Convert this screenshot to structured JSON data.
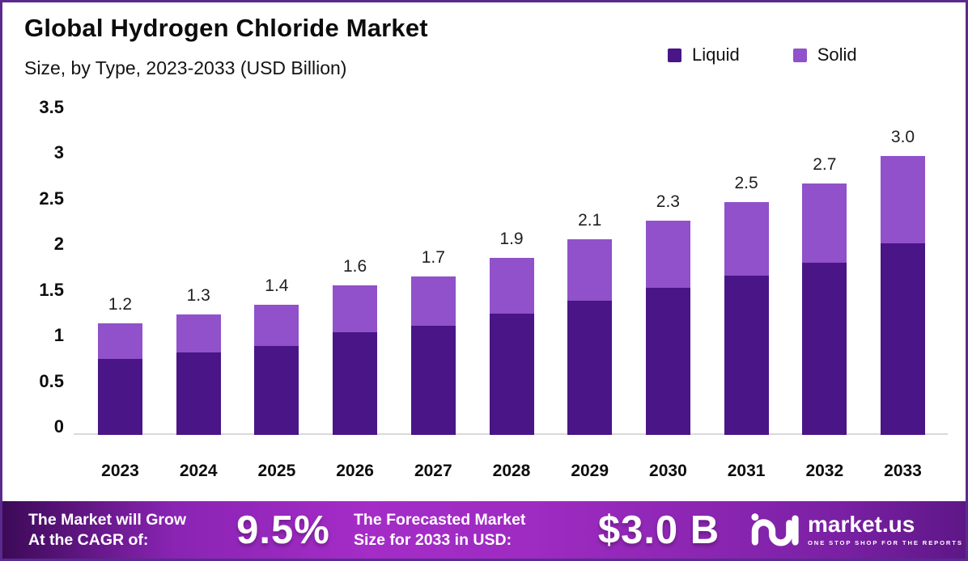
{
  "title": "Global Hydrogen Chloride Market",
  "subtitle": "Size, by Type, 2023-2033 (USD Billion)",
  "legend": [
    {
      "label": "Liquid",
      "color": "#4a1586"
    },
    {
      "label": "Solid",
      "color": "#9051ca"
    }
  ],
  "chart_data": {
    "type": "bar",
    "stacked": true,
    "title": "Global Hydrogen Chloride Market Size, by Type, 2023-2033 (USD Billion)",
    "categories": [
      "2023",
      "2024",
      "2025",
      "2026",
      "2027",
      "2028",
      "2029",
      "2030",
      "2031",
      "2032",
      "2033"
    ],
    "series": [
      {
        "name": "Liquid",
        "color": "#4a1586",
        "values": [
          0.82,
          0.89,
          0.96,
          1.1,
          1.17,
          1.3,
          1.44,
          1.58,
          1.71,
          1.85,
          2.06
        ]
      },
      {
        "name": "Solid",
        "color": "#9051ca",
        "values": [
          0.38,
          0.41,
          0.44,
          0.5,
          0.53,
          0.6,
          0.66,
          0.72,
          0.79,
          0.85,
          0.94
        ]
      }
    ],
    "total_labels": [
      "1.2",
      "1.3",
      "1.4",
      "1.6",
      "1.7",
      "1.9",
      "2.1",
      "2.3",
      "2.5",
      "2.7",
      "3.0"
    ],
    "ylabel": "",
    "xlabel": "",
    "ylim": [
      0,
      3.5
    ],
    "y_ticks": [
      3.5,
      3,
      2.5,
      2,
      1.5,
      1,
      0.5,
      0
    ],
    "grid": false,
    "legend_position": "top-right"
  },
  "footer": {
    "cagr_label_line1": "The Market will Grow",
    "cagr_label_line2": "At the CAGR of:",
    "cagr_value": "9.5%",
    "forecast_label_line1": "The Forecasted Market",
    "forecast_label_line2": "Size for 2033 in USD:",
    "forecast_value": "$3.0 B",
    "brand_name": "market.us",
    "brand_tagline": "ONE STOP SHOP FOR THE REPORTS"
  },
  "colors": {
    "liquid": "#4a1586",
    "solid": "#9051ca",
    "border": "#5b2a8e",
    "axis_line": "#d9d9d9",
    "footer_gradient_start": "#3c0a57",
    "footer_gradient_mid": "#a52cc7",
    "footer_gradient_end": "#5e1787",
    "text": "#0c0c0c",
    "footer_text": "#ffffff"
  }
}
